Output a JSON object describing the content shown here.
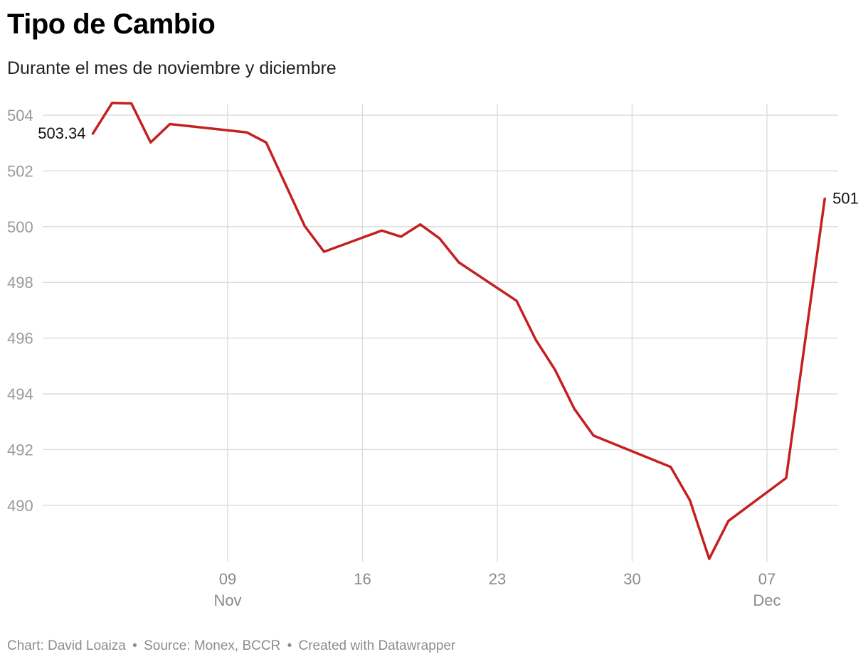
{
  "chart_data": {
    "type": "line",
    "title": "Tipo de Cambio",
    "subtitle": "Durante el mes de noviembre y diciembre",
    "xlabel": "",
    "ylabel": "",
    "ylim": [
      488,
      504
    ],
    "yticks": [
      504,
      502,
      500,
      498,
      496,
      494,
      492,
      490
    ],
    "xticks": [
      {
        "day": 9,
        "label": "09",
        "month": "Nov"
      },
      {
        "day": 16,
        "label": "16",
        "month": ""
      },
      {
        "day": 23,
        "label": "23",
        "month": ""
      },
      {
        "day": 30,
        "label": "30",
        "month": ""
      },
      {
        "day": 37,
        "label": "07",
        "month": "Dec"
      }
    ],
    "grid": true,
    "legend": "none",
    "line_color": "#c42020",
    "series": [
      {
        "x": [
          2,
          3,
          4,
          5,
          6,
          10,
          11,
          13,
          14,
          17,
          18,
          19,
          20,
          21,
          24,
          25,
          26,
          27,
          28,
          32,
          33,
          34,
          35,
          38,
          40
        ],
        "values": [
          503.34,
          504.44,
          504.42,
          503.02,
          503.68,
          503.38,
          503.02,
          500.02,
          499.1,
          499.86,
          499.64,
          500.08,
          499.58,
          498.72,
          497.34,
          495.94,
          494.86,
          493.46,
          492.5,
          491.38,
          490.18,
          488.08,
          489.44,
          490.98,
          501.0
        ]
      }
    ],
    "annotations": [
      {
        "point": "first",
        "text": "503.34"
      },
      {
        "point": "last",
        "text": "501"
      }
    ]
  },
  "footer": {
    "chart_credit": "Chart: David Loaiza",
    "source": "Source: Monex, BCCR",
    "created_with": "Created with Datawrapper",
    "separator": "•"
  }
}
